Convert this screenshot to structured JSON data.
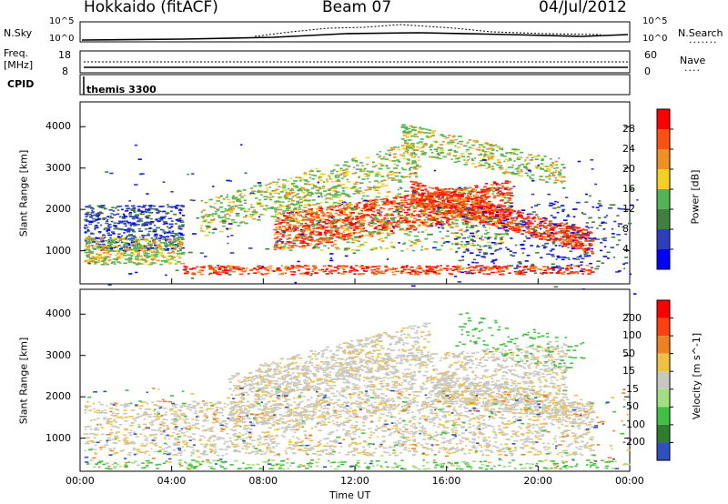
{
  "header": {
    "station": "Hokkaido (fitACF)",
    "beam": "Beam 07",
    "date": "04/Jul/2012"
  },
  "noise_panel": {
    "left_label": "N.Sky",
    "right_label": "N.Search",
    "y_top_tick": "10^5",
    "y_bottom_tick": "10^0"
  },
  "freq_panel": {
    "left_label_line1": "Freq.",
    "left_label_line2": "[MHz]",
    "right_label": "Nave",
    "left_ticks": [
      "18",
      "8"
    ],
    "right_ticks": [
      "60",
      "0"
    ]
  },
  "cpid_panel": {
    "label": "CPID",
    "program": "themis 3300"
  },
  "chart_data": [
    {
      "type": "heatmap",
      "title": "",
      "ylabel": "Slant Range [km]",
      "ylim": [
        200,
        4600
      ],
      "yticks": [
        "4000",
        "3000",
        "2000",
        "1000"
      ],
      "colorbar_label": "Power [dB]",
      "colorbar_ticks": [
        "28",
        "24",
        "20",
        "16",
        "12",
        "8",
        "4"
      ],
      "colorbar_colors": [
        "#0000ff",
        "#2d3fbf",
        "#3f7f3f",
        "#52b452",
        "#f0d020",
        "#f09020",
        "#ff5010",
        "#ff0000"
      ]
    },
    {
      "type": "heatmap",
      "title": "",
      "ylabel": "Slant Range [km]",
      "ylim": [
        200,
        4600
      ],
      "yticks": [
        "4000",
        "3000",
        "2000",
        "1000"
      ],
      "colorbar_label": "Velocity [m s^-1]",
      "colorbar_ticks": [
        "200",
        "100",
        "50",
        "15",
        "-15",
        "-50",
        "-100",
        "-200"
      ],
      "colorbar_colors": [
        "#3050c0",
        "#2d7f2d",
        "#40c040",
        "#a0e080",
        "#c8c8c0",
        "#f0c040",
        "#f08020",
        "#ff4010",
        "#ff0000"
      ]
    }
  ],
  "time_axis": {
    "label": "Time UT",
    "ticks": [
      "00:00",
      "04:00",
      "08:00",
      "12:00",
      "16:00",
      "20:00",
      "00:00"
    ]
  }
}
